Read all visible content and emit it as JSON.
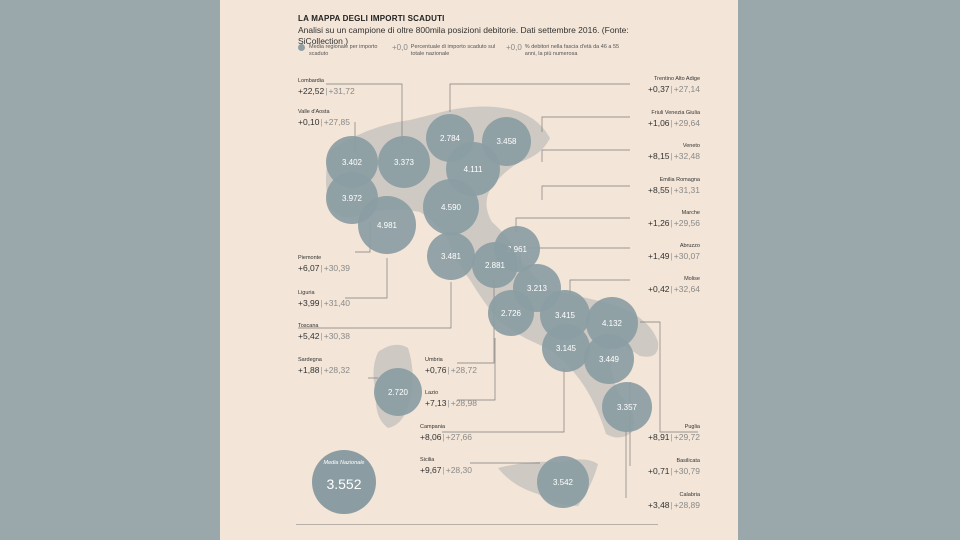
{
  "title": "LA MAPPA DEGLI IMPORTI SCADUTI",
  "subtitle": "Analisi su un campione di oltre 800mila posizioni debitorie. Dati settembre 2016. (Fonte: SiCollection )",
  "legend": {
    "dot_label": "Media regionale per importo scaduto",
    "pct_num": "+0,0",
    "pct_label": "Percentuale di importo scaduto sul totale nazionale",
    "debt_num": "+0,0",
    "debt_label": "% debitori nella fascia d'età da 46 a 55 anni, la più numerosa"
  },
  "national": {
    "label": "Media Nazionale",
    "value": "3.552"
  },
  "colors": {
    "background": "#9aa8ab",
    "page": "#f3e5d7",
    "bubble": "#8b9da3",
    "land": "#cfc9c4"
  },
  "regions": {
    "lombardia": {
      "name": "Lombardia",
      "pct": "+22,52",
      "debt": "+31,72",
      "bubble": "3.373"
    },
    "valle_aosta": {
      "name": "Valle d'Aosta",
      "pct": "+0,10",
      "debt": "+27,85",
      "bubble": "3.402"
    },
    "piemonte": {
      "name": "Piemonte",
      "pct": "+6,07",
      "debt": "+30,39",
      "bubble": "3.972"
    },
    "liguria": {
      "name": "Liguria",
      "pct": "+3,99",
      "debt": "+31,40",
      "bubble": "4.981"
    },
    "toscana": {
      "name": "Toscana",
      "pct": "+5,42",
      "debt": "+30,38",
      "bubble": "3.481"
    },
    "sardegna": {
      "name": "Sardegna",
      "pct": "+1,88",
      "debt": "+28,32",
      "bubble": "2.720"
    },
    "umbria": {
      "name": "Umbria",
      "pct": "+0,76",
      "debt": "+28,72",
      "bubble": "2.881"
    },
    "lazio": {
      "name": "Lazio",
      "pct": "+7,13",
      "debt": "+28,98",
      "bubble": "2.726"
    },
    "campania": {
      "name": "Campania",
      "pct": "+8,06",
      "debt": "+27,66",
      "bubble": "3.145"
    },
    "sicilia": {
      "name": "Sicilia",
      "pct": "+9,67",
      "debt": "+28,30",
      "bubble": "3.542"
    },
    "trentino": {
      "name": "Trentino Alto Adige",
      "pct": "+0,37",
      "debt": "+27,14",
      "bubble": "2.784"
    },
    "friuli": {
      "name": "Friuli Venezia Giulia",
      "pct": "+1,06",
      "debt": "+29,64",
      "bubble": "3.458"
    },
    "veneto": {
      "name": "Veneto",
      "pct": "+8,15",
      "debt": "+32,48",
      "bubble": "4.111"
    },
    "emilia": {
      "name": "Emilia Romagna",
      "pct": "+8,55",
      "debt": "+31,31",
      "bubble": "4.590"
    },
    "marche": {
      "name": "Marche",
      "pct": "+1,26",
      "debt": "+29,56",
      "bubble": "2.961"
    },
    "abruzzo": {
      "name": "Abruzzo",
      "pct": "+1,49",
      "debt": "+30,07",
      "bubble": "3.213"
    },
    "molise": {
      "name": "Molise",
      "pct": "+0,42",
      "debt": "+32,64",
      "bubble": "3.415"
    },
    "puglia": {
      "name": "Puglia",
      "pct": "+8,91",
      "debt": "+29,72",
      "bubble": "4.132"
    },
    "basilicata": {
      "name": "Basilicata",
      "pct": "+0,71",
      "debt": "+30,79",
      "bubble": "3.449"
    },
    "calabria": {
      "name": "Calabria",
      "pct": "+3,48",
      "debt": "+28,89",
      "bubble": "3.357"
    }
  }
}
